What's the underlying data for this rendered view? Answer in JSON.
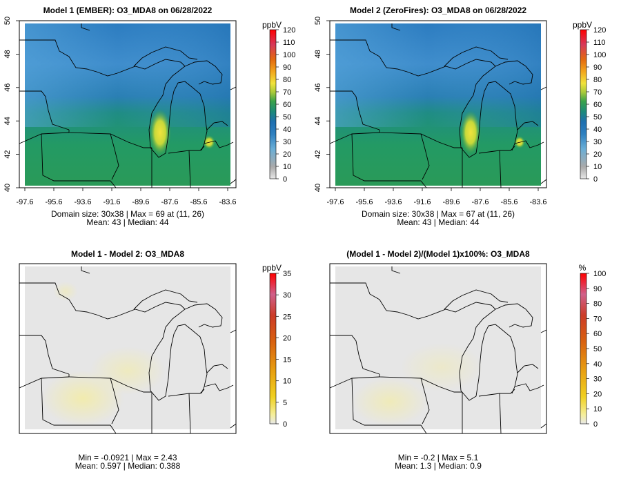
{
  "panels": [
    {
      "title": "Model 1 (EMBER): O3_MDA8 on 06/28/2022",
      "unit": "ppbV",
      "x_ticks": [
        "-97.6",
        "-95.6",
        "-93.6",
        "-91.6",
        "-89.6",
        "-87.6",
        "-85.6",
        "-83.6"
      ],
      "y_ticks": [
        "40",
        "42",
        "44",
        "46",
        "48",
        "50"
      ],
      "cbar_ticks": [
        "0",
        "10",
        "20",
        "30",
        "40",
        "50",
        "60",
        "70",
        "80",
        "90",
        "100",
        "110",
        "120"
      ],
      "stats_line1": "Domain size: 30x38 | Max = 69 at (11, 26)",
      "stats_line2": "Mean: 43 |  Median: 44"
    },
    {
      "title": "Model 2 (ZeroFires): O3_MDA8 on 06/28/2022",
      "unit": "ppbV",
      "x_ticks": [
        "-97.6",
        "-95.6",
        "-93.6",
        "-91.6",
        "-89.6",
        "-87.6",
        "-85.6",
        "-83.6"
      ],
      "y_ticks": [
        "40",
        "42",
        "44",
        "46",
        "48",
        "50"
      ],
      "cbar_ticks": [
        "0",
        "10",
        "20",
        "30",
        "40",
        "50",
        "60",
        "70",
        "80",
        "90",
        "100",
        "110",
        "120"
      ],
      "stats_line1": "Domain size: 30x38 | Max = 67 at (11, 26)",
      "stats_line2": "Mean: 43 |  Median: 44"
    },
    {
      "title": "Model 1 - Model 2: O3_MDA8",
      "unit": "ppbV",
      "cbar_ticks": [
        "0",
        "5",
        "10",
        "15",
        "20",
        "25",
        "30",
        "35"
      ],
      "stats_line1": "Min = -0.0921 | Max = 2.43",
      "stats_line2": "Mean: 0.597 |  Median: 0.388"
    },
    {
      "title": "(Model 1 - Model 2)/(Model 1)x100%: O3_MDA8",
      "unit": "%",
      "cbar_ticks": [
        "0",
        "10",
        "20",
        "30",
        "40",
        "50",
        "60",
        "70",
        "80",
        "90",
        "100"
      ],
      "stats_line1": "Min = -0.2 | Max = 5.1",
      "stats_line2": "Mean: 1.3 |  Median: 0.9"
    }
  ],
  "colors": {
    "conc_scale": [
      "#e8e8e8",
      "#aaaaaa",
      "#6aaed6",
      "#3b8fc6",
      "#1f6fb0",
      "#1d8a7a",
      "#3aa24a",
      "#a9c93a",
      "#f1e33c",
      "#f2a51c",
      "#e36a0f",
      "#d6395a",
      "#ff0000"
    ],
    "diff_scale": [
      "#e8e8e8",
      "#f5ee9a",
      "#f0d020",
      "#e8a010",
      "#d86010",
      "#cc3c28",
      "#d0608a",
      "#ff0000"
    ],
    "background_gray": "#e6e6e6"
  }
}
